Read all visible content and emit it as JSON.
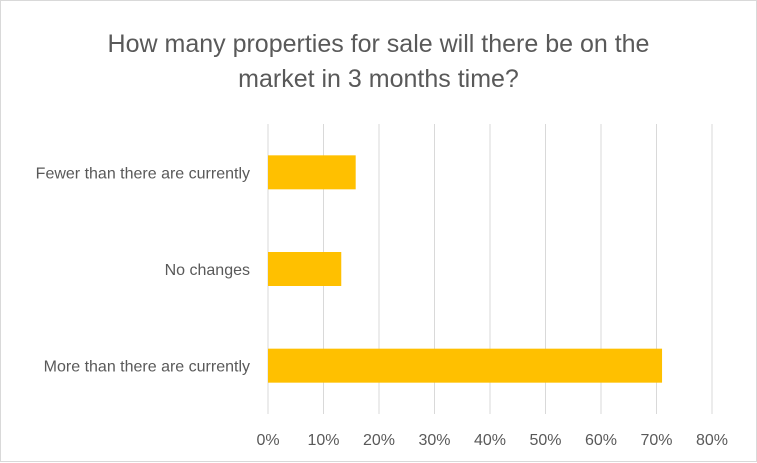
{
  "chart_data": {
    "type": "bar",
    "orientation": "horizontal",
    "title_lines": [
      "How many properties for sale will there be on the",
      "market in 3 months time?"
    ],
    "categories": [
      "Fewer than there are currently",
      "No changes",
      "More than there are currently"
    ],
    "values": [
      15.8,
      13.2,
      71.0
    ],
    "value_unit": "%",
    "xlim": [
      0,
      80
    ],
    "x_ticks": [
      "0%",
      "10%",
      "20%",
      "30%",
      "40%",
      "50%",
      "60%",
      "70%",
      "80%"
    ],
    "grid": "vertical",
    "legend": "none",
    "bar_color": "#FFC000"
  }
}
